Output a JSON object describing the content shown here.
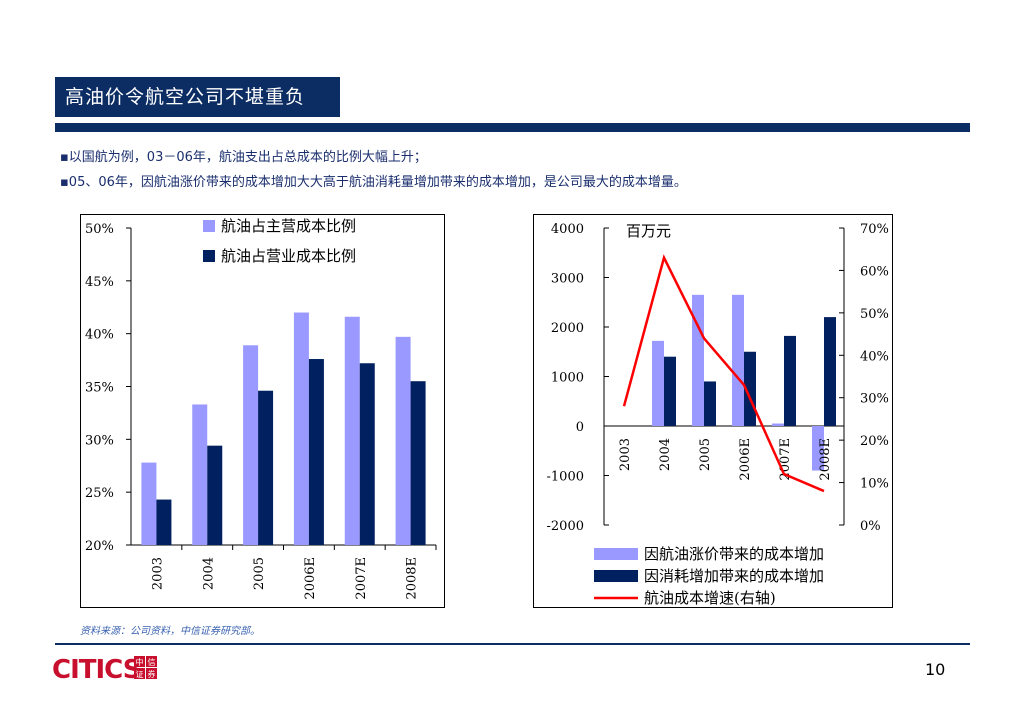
{
  "title": "高油价令航空公司不堪重负",
  "bullets": [
    "▪以国航为例，03－06年，航油支出占总成本的比例大幅上升；",
    "▪05、06年，因航油涨价带来的成本增加大大高于航油消耗量增加带来的成本增加，是公司最大的成本增量。"
  ],
  "source": "资料来源：公司资料，中信证券研究部。",
  "page_number": "10",
  "logo": {
    "text": "CITICS",
    "box_chars": [
      "中",
      "信",
      "证",
      "券"
    ],
    "colors": {
      "text": "#c8102e",
      "box": "#c8102e"
    }
  },
  "colors": {
    "navy": "#0c2d63",
    "light_bar": "#9999ff",
    "dark_bar": "#002060",
    "red_line": "#ff0000"
  },
  "chart_data": [
    {
      "type": "bar",
      "categories": [
        "2003",
        "2004",
        "2005",
        "2006E",
        "2007E",
        "2008E"
      ],
      "series": [
        {
          "name": "航油占主营成本比例",
          "values": [
            27.8,
            33.3,
            38.9,
            42.0,
            41.6,
            39.7
          ],
          "color": "#9999ff"
        },
        {
          "name": "航油占营业成本比例",
          "values": [
            24.3,
            29.4,
            34.6,
            37.6,
            37.2,
            35.5
          ],
          "color": "#002060"
        }
      ],
      "y_ticks": [
        "20%",
        "25%",
        "30%",
        "35%",
        "40%",
        "45%",
        "50%"
      ],
      "ylim": [
        20,
        50
      ],
      "legend_position": "top"
    },
    {
      "type": "bar",
      "unit_label": "百万元",
      "categories": [
        "2003",
        "2004",
        "2005",
        "2006E",
        "2007E",
        "2008E"
      ],
      "series": [
        {
          "name": "因航油涨价带来的成本增加",
          "values": [
            0,
            1720,
            2650,
            2650,
            50,
            -900
          ],
          "color": "#9999ff"
        },
        {
          "name": "因消耗增加带来的成本增加",
          "values": [
            0,
            1400,
            900,
            1500,
            1820,
            2200
          ],
          "color": "#002060"
        },
        {
          "name": "航油成本增速(右轴)",
          "type": "line",
          "axis": "right",
          "values": [
            28,
            63,
            44,
            33,
            12,
            8
          ],
          "color": "#ff0000"
        }
      ],
      "y_ticks": [
        "-2000",
        "-1000",
        "0",
        "1000",
        "2000",
        "3000",
        "4000"
      ],
      "ylim": [
        -2000,
        4000
      ],
      "y2_ticks": [
        "0%",
        "10%",
        "20%",
        "30%",
        "40%",
        "50%",
        "60%",
        "70%"
      ],
      "y2lim": [
        0,
        70
      ],
      "legend_position": "bottom"
    }
  ]
}
